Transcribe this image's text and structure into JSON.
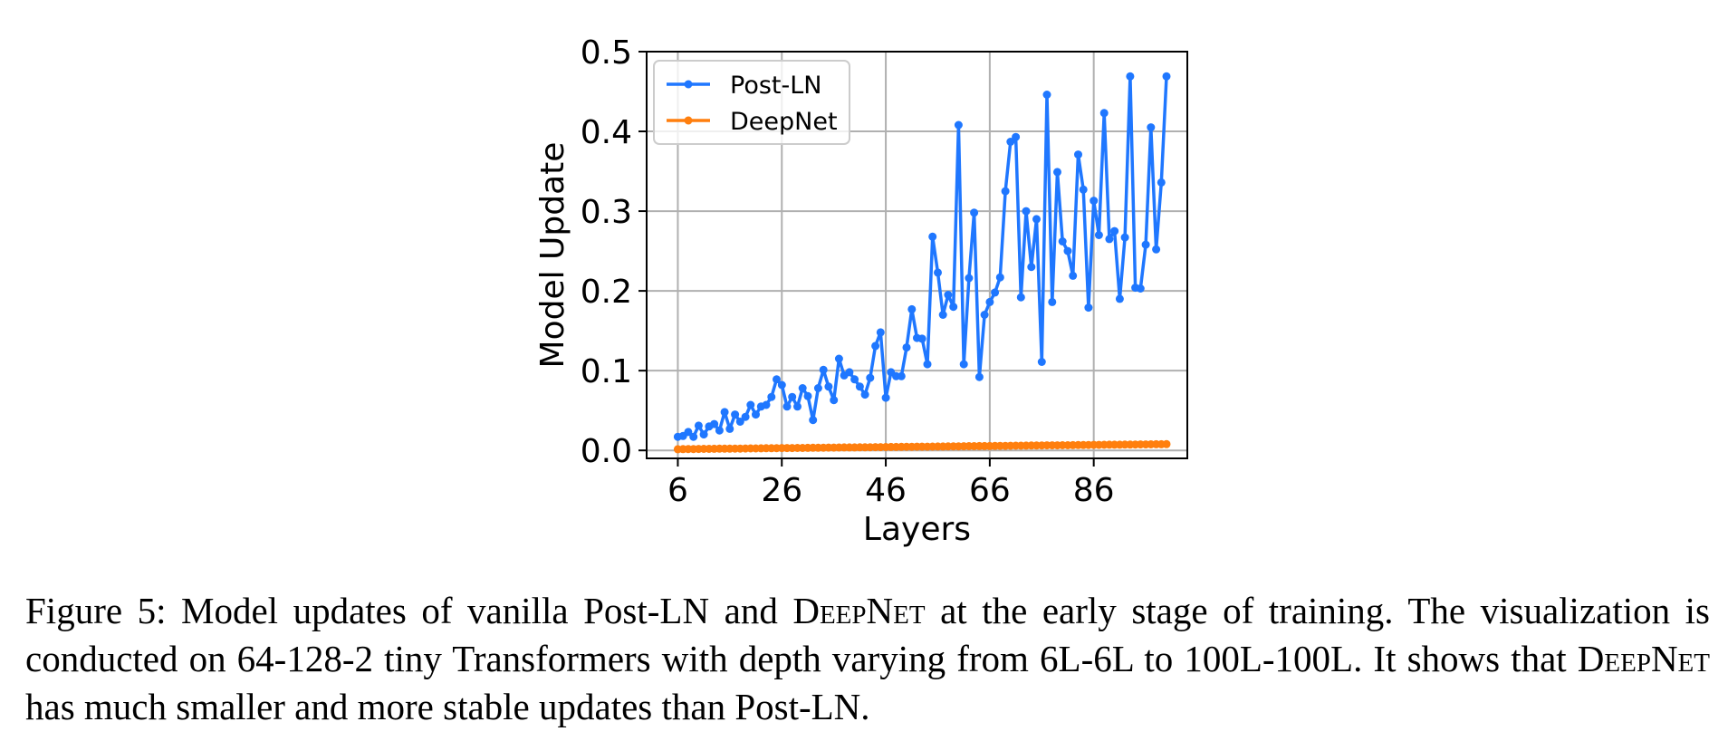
{
  "chart_data": {
    "type": "line",
    "xlabel": "Layers",
    "ylabel": "Model Update",
    "xlim": [
      0,
      104
    ],
    "ylim": [
      -0.01,
      0.5
    ],
    "xticks": [
      6,
      26,
      46,
      66,
      86
    ],
    "xtick_labels": [
      "6",
      "26",
      "46",
      "66",
      "86"
    ],
    "yticks": [
      0.0,
      0.1,
      0.2,
      0.3,
      0.4,
      0.5
    ],
    "ytick_labels": [
      "0.0",
      "0.1",
      "0.2",
      "0.3",
      "0.4",
      "0.5"
    ],
    "grid": true,
    "legend_placement": "top-left",
    "series": [
      {
        "name": "Post-LN",
        "color": "#1f77ff",
        "x": [
          6,
          7,
          8,
          9,
          10,
          11,
          12,
          13,
          14,
          15,
          16,
          17,
          18,
          19,
          20,
          21,
          22,
          23,
          24,
          25,
          26,
          27,
          28,
          29,
          30,
          31,
          32,
          33,
          34,
          35,
          36,
          37,
          38,
          39,
          40,
          41,
          42,
          43,
          44,
          45,
          46,
          47,
          48,
          49,
          50,
          51,
          52,
          53,
          54,
          55,
          56,
          57,
          58,
          59,
          60,
          61,
          62,
          63,
          64,
          65,
          66,
          67,
          68,
          69,
          70,
          71,
          72,
          73,
          74,
          75,
          76,
          77,
          78,
          79,
          80,
          81,
          82,
          83,
          84,
          85,
          86,
          87,
          88,
          89,
          90,
          91,
          92,
          93,
          94,
          95,
          96,
          97,
          98,
          99,
          100
        ],
        "values": [
          0.017,
          0.018,
          0.023,
          0.017,
          0.031,
          0.02,
          0.03,
          0.033,
          0.025,
          0.048,
          0.027,
          0.045,
          0.036,
          0.042,
          0.057,
          0.045,
          0.055,
          0.057,
          0.067,
          0.089,
          0.082,
          0.055,
          0.067,
          0.055,
          0.078,
          0.068,
          0.038,
          0.078,
          0.101,
          0.08,
          0.063,
          0.115,
          0.094,
          0.098,
          0.089,
          0.08,
          0.07,
          0.091,
          0.131,
          0.148,
          0.066,
          0.098,
          0.093,
          0.093,
          0.129,
          0.177,
          0.141,
          0.14,
          0.108,
          0.268,
          0.223,
          0.17,
          0.195,
          0.18,
          0.408,
          0.108,
          0.216,
          0.298,
          0.092,
          0.17,
          0.186,
          0.198,
          0.217,
          0.325,
          0.387,
          0.393,
          0.192,
          0.3,
          0.23,
          0.29,
          0.111,
          0.446,
          0.186,
          0.349,
          0.262,
          0.25,
          0.219,
          0.371,
          0.327,
          0.179,
          0.313,
          0.27,
          0.423,
          0.265,
          0.275,
          0.19,
          0.267,
          0.469,
          0.204,
          0.203,
          0.258,
          0.405,
          0.252,
          0.336,
          0.469
        ]
      },
      {
        "name": "DeepNet",
        "color": "#ff7f0e",
        "x": [
          6,
          7,
          8,
          9,
          10,
          11,
          12,
          13,
          14,
          15,
          16,
          17,
          18,
          19,
          20,
          21,
          22,
          23,
          24,
          25,
          26,
          27,
          28,
          29,
          30,
          31,
          32,
          33,
          34,
          35,
          36,
          37,
          38,
          39,
          40,
          41,
          42,
          43,
          44,
          45,
          46,
          47,
          48,
          49,
          50,
          51,
          52,
          53,
          54,
          55,
          56,
          57,
          58,
          59,
          60,
          61,
          62,
          63,
          64,
          65,
          66,
          67,
          68,
          69,
          70,
          71,
          72,
          73,
          74,
          75,
          76,
          77,
          78,
          79,
          80,
          81,
          82,
          83,
          84,
          85,
          86,
          87,
          88,
          89,
          90,
          91,
          92,
          93,
          94,
          95,
          96,
          97,
          98,
          99,
          100
        ],
        "values": [
          0.0015,
          0.0016,
          0.0017,
          0.0017,
          0.0018,
          0.0019,
          0.0019,
          0.002,
          0.0021,
          0.0021,
          0.0022,
          0.0023,
          0.0023,
          0.0024,
          0.0025,
          0.0025,
          0.0026,
          0.0027,
          0.0027,
          0.0028,
          0.0029,
          0.0029,
          0.003,
          0.0031,
          0.0031,
          0.0032,
          0.0033,
          0.0033,
          0.0034,
          0.0035,
          0.0035,
          0.0036,
          0.0037,
          0.0037,
          0.0038,
          0.0039,
          0.0039,
          0.004,
          0.0041,
          0.0041,
          0.0042,
          0.0043,
          0.0043,
          0.0044,
          0.0045,
          0.0045,
          0.0046,
          0.0047,
          0.0047,
          0.0048,
          0.0049,
          0.0049,
          0.005,
          0.0051,
          0.0051,
          0.0052,
          0.0053,
          0.0053,
          0.0054,
          0.0055,
          0.0055,
          0.0056,
          0.0057,
          0.0057,
          0.0058,
          0.0059,
          0.0059,
          0.006,
          0.0061,
          0.0061,
          0.0062,
          0.0063,
          0.0063,
          0.0064,
          0.0065,
          0.0065,
          0.0066,
          0.0067,
          0.0067,
          0.0068,
          0.0069,
          0.0069,
          0.007,
          0.0071,
          0.0071,
          0.0072,
          0.0073,
          0.0073,
          0.0074,
          0.0075,
          0.0075,
          0.0076,
          0.0077,
          0.0077,
          0.0078
        ]
      }
    ]
  },
  "caption": {
    "prefix": "Figure 5: Model updates of vanilla Post-LN and ",
    "deepnet_1": "DeepNet",
    "middle": " at the early stage of training. The visualization is conducted on 64-128-2 tiny Transformers with depth varying from 6L-6L to 100L-100L. It shows that ",
    "deepnet_2": "DeepNet",
    "suffix": " has much smaller and more stable updates than Post-LN."
  }
}
